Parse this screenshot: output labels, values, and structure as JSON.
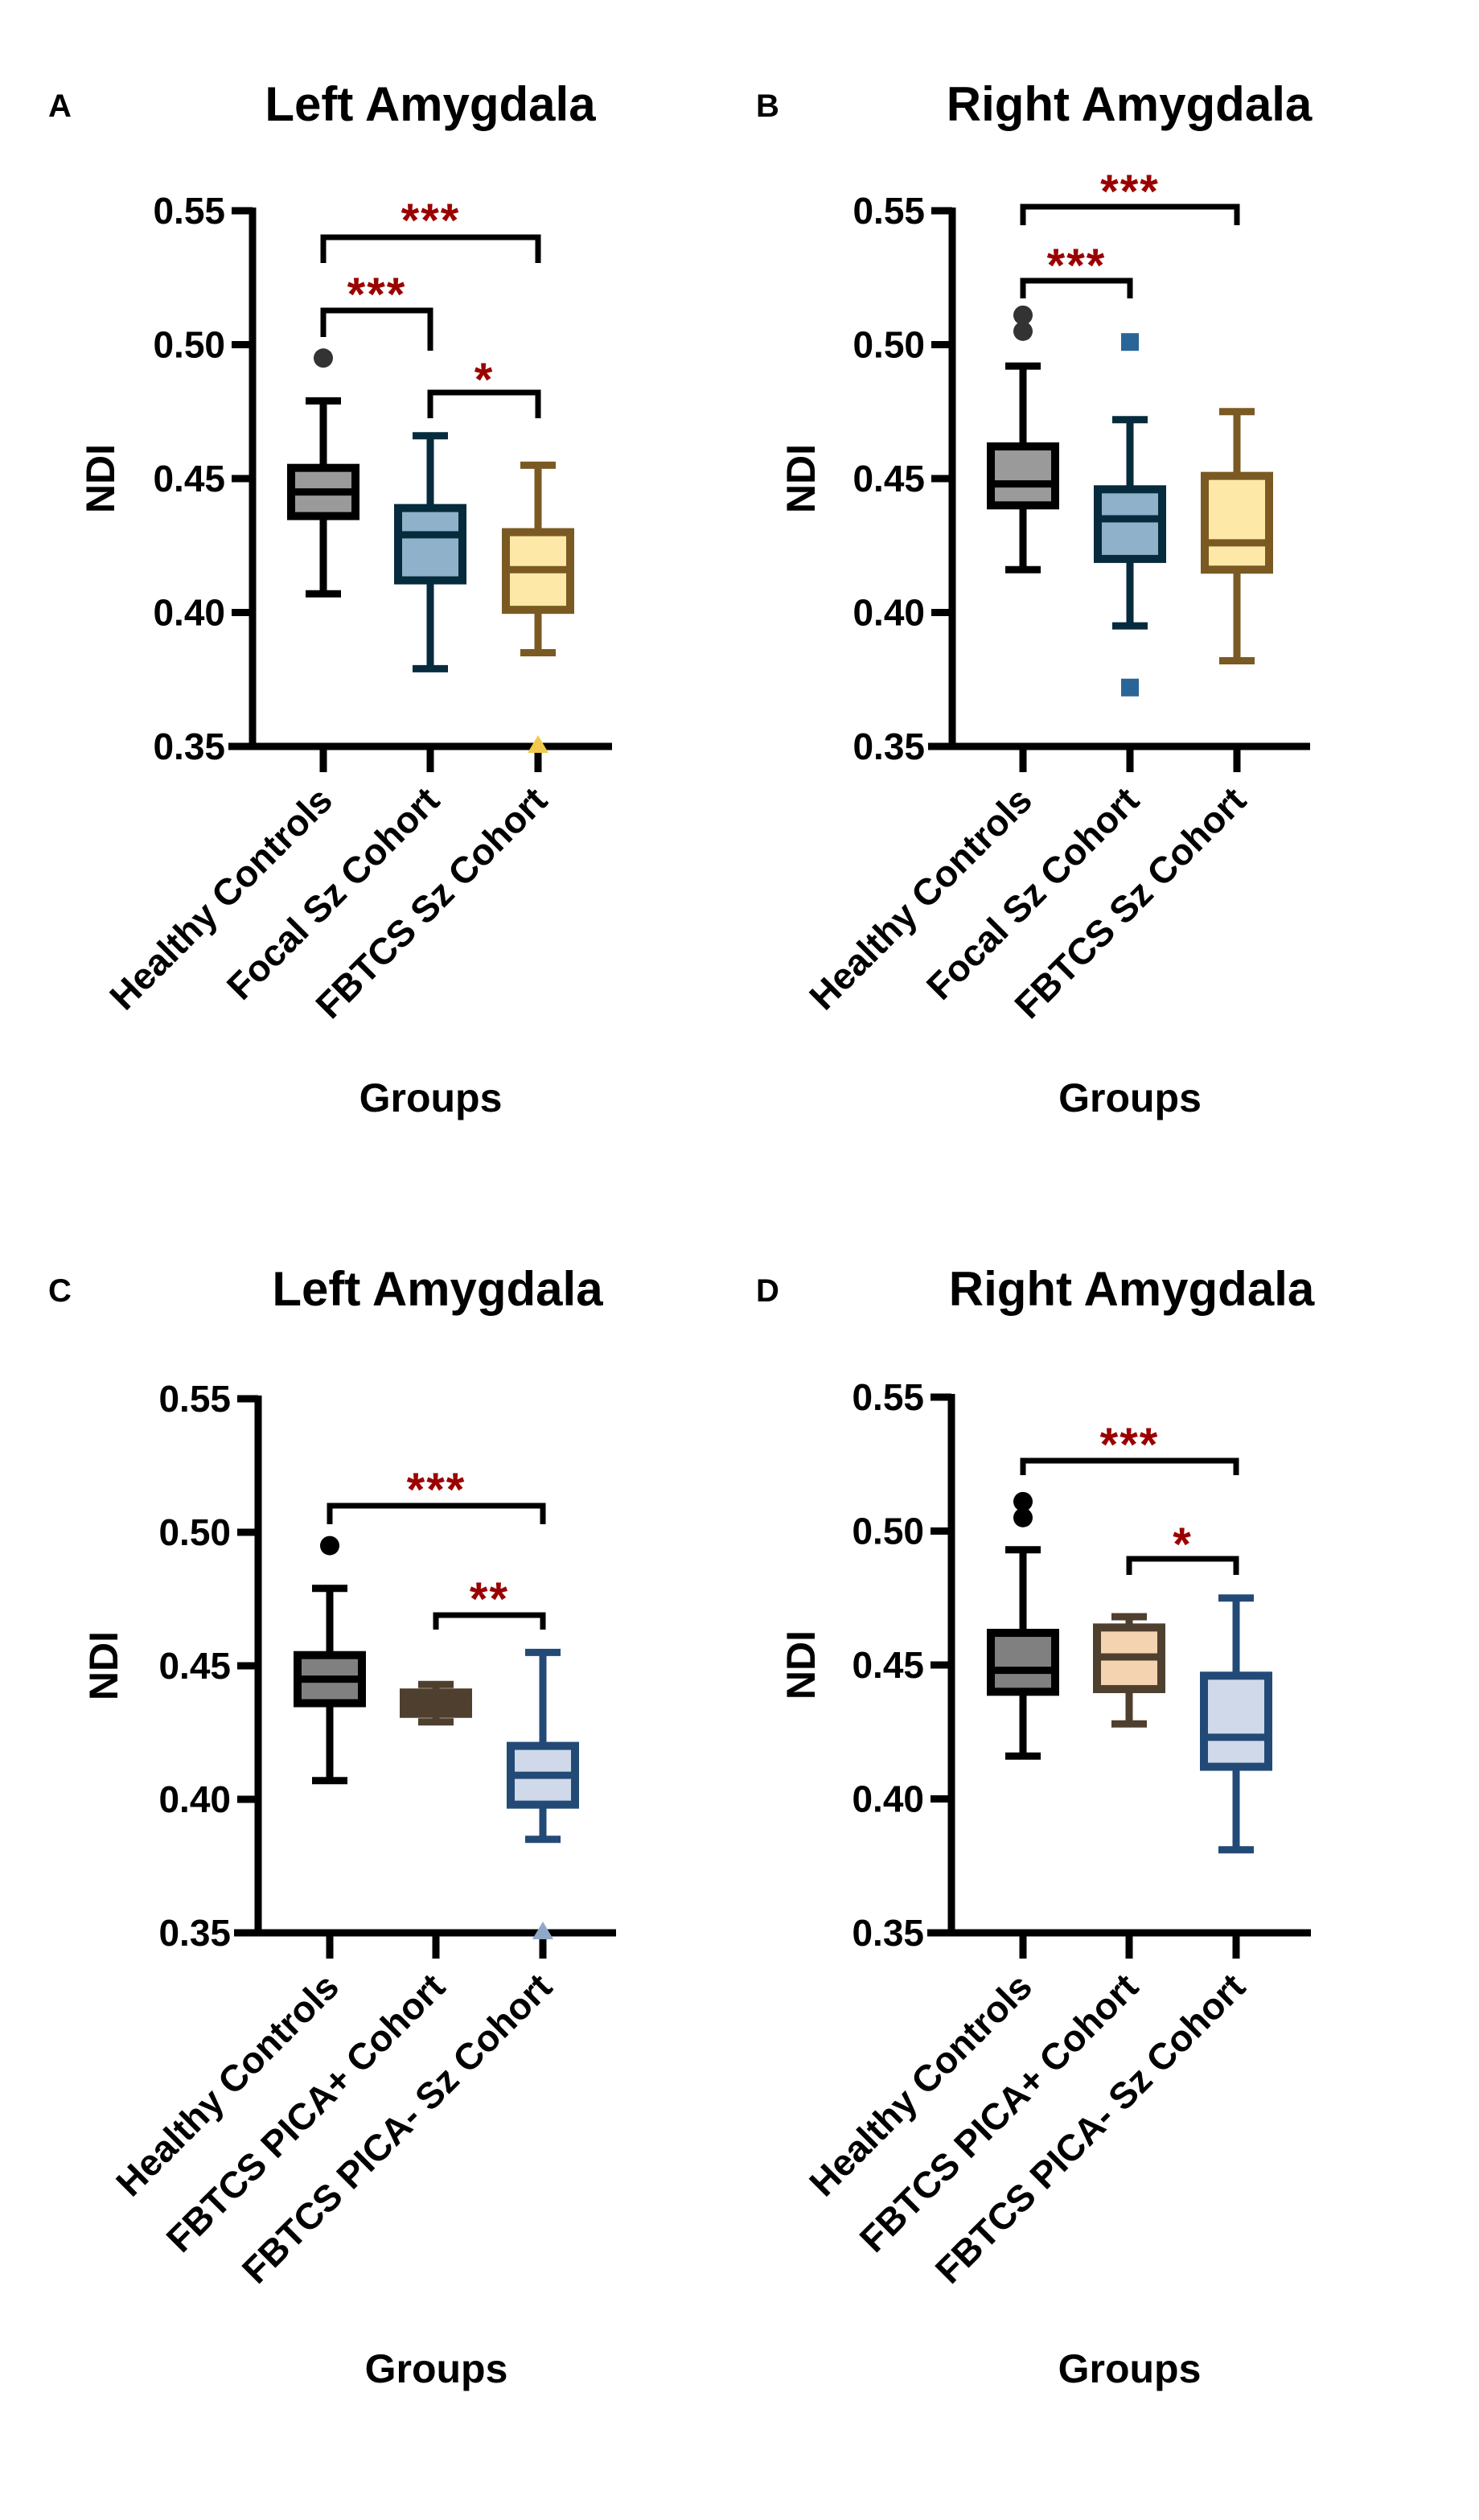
{
  "figure": {
    "panels": [
      "A",
      "B",
      "C",
      "D"
    ]
  },
  "chart_data": [
    {
      "id": "A",
      "panel_letter": "A",
      "type": "box",
      "title": "Left Amygdala",
      "xlabel": "Groups",
      "ylabel": "NDI",
      "ylim": [
        0.35,
        0.55
      ],
      "yticks": [
        "0.35",
        "0.40",
        "0.45",
        "0.50",
        "0.55"
      ],
      "ytick_values": [
        0.35,
        0.4,
        0.45,
        0.5,
        0.55
      ],
      "grid": false,
      "categories": [
        "Healthy Controls",
        "Focal Sz Cohort",
        "FBTCS Sz Cohort"
      ],
      "series": [
        {
          "name": "Healthy Controls",
          "whisker_low": 0.407,
          "q1": 0.436,
          "median": 0.445,
          "q3": 0.454,
          "whisker_high": 0.479,
          "outliers": [
            0.495
          ],
          "outlier_marker": "circle",
          "stroke": "#000000",
          "fill": "#9a9a9a",
          "outlier_color": "#333333"
        },
        {
          "name": "Focal Sz Cohort",
          "whisker_low": 0.379,
          "q1": 0.412,
          "median": 0.429,
          "q3": 0.439,
          "whisker_high": 0.466,
          "outliers": [],
          "outlier_marker": "square",
          "stroke": "#062b3d",
          "fill": "#8fb2ca",
          "outlier_color": "#2a6598"
        },
        {
          "name": "FBTCS Sz Cohort",
          "whisker_low": 0.385,
          "q1": 0.401,
          "median": 0.416,
          "q3": 0.43,
          "whisker_high": 0.455,
          "outliers": [
            0.35
          ],
          "outlier_marker": "triangle",
          "stroke": "#7a5a22",
          "fill": "#fde8a8",
          "outlier_color": "#f2c94c"
        }
      ],
      "significance": [
        {
          "from": 0,
          "to": 2,
          "label": "***"
        },
        {
          "from": 0,
          "to": 1,
          "label": "***"
        },
        {
          "from": 1,
          "to": 2,
          "label": "*"
        }
      ]
    },
    {
      "id": "B",
      "panel_letter": "B",
      "type": "box",
      "title": "Right Amygdala",
      "xlabel": "Groups",
      "ylabel": "NDI",
      "ylim": [
        0.35,
        0.55
      ],
      "yticks": [
        "0.35",
        "0.40",
        "0.45",
        "0.50",
        "0.55"
      ],
      "ytick_values": [
        0.35,
        0.4,
        0.45,
        0.5,
        0.55
      ],
      "grid": false,
      "categories": [
        "Healthy Controls",
        "Focal Sz Cohort",
        "FBTCS Sz Cohort"
      ],
      "series": [
        {
          "name": "Healthy Controls",
          "whisker_low": 0.416,
          "q1": 0.44,
          "median": 0.448,
          "q3": 0.462,
          "whisker_high": 0.492,
          "outliers": [
            0.511,
            0.505
          ],
          "outlier_marker": "circle",
          "stroke": "#000000",
          "fill": "#9a9a9a",
          "outlier_color": "#333333"
        },
        {
          "name": "Focal Sz Cohort",
          "whisker_low": 0.395,
          "q1": 0.42,
          "median": 0.435,
          "q3": 0.446,
          "whisker_high": 0.472,
          "outliers": [
            0.501,
            0.372
          ],
          "outlier_marker": "square",
          "stroke": "#062b3d",
          "fill": "#8fb2ca",
          "outlier_color": "#2a6598"
        },
        {
          "name": "FBTCS Sz Cohort",
          "whisker_low": 0.382,
          "q1": 0.416,
          "median": 0.426,
          "q3": 0.451,
          "whisker_high": 0.475,
          "outliers": [],
          "outlier_marker": "triangle",
          "stroke": "#7a5a22",
          "fill": "#fde8a8",
          "outlier_color": "#f2c94c"
        }
      ],
      "significance": [
        {
          "from": 0,
          "to": 2,
          "label": "***"
        },
        {
          "from": 0,
          "to": 1,
          "label": "***"
        }
      ]
    },
    {
      "id": "C",
      "panel_letter": "C",
      "type": "box",
      "title": "Left Amygdala",
      "xlabel": "Groups",
      "ylabel": "NDI",
      "ylim": [
        0.35,
        0.55
      ],
      "yticks": [
        "0.35",
        "0.40",
        "0.45",
        "0.50",
        "0.55"
      ],
      "ytick_values": [
        0.35,
        0.4,
        0.45,
        0.5,
        0.55
      ],
      "grid": false,
      "categories": [
        "Healthy Controls",
        "FBTCS PICA+ Cohort",
        "FBTCS PICA- Sz Cohort"
      ],
      "series": [
        {
          "name": "Healthy Controls",
          "whisker_low": 0.407,
          "q1": 0.436,
          "median": 0.445,
          "q3": 0.454,
          "whisker_high": 0.479,
          "outliers": [
            0.495
          ],
          "outlier_marker": "circle",
          "stroke": "#000000",
          "fill": "#808080",
          "outlier_color": "#000000"
        },
        {
          "name": "FBTCS PICA+ Cohort",
          "whisker_low": 0.429,
          "q1": 0.432,
          "median": 0.437,
          "q3": 0.44,
          "whisker_high": 0.443,
          "outliers": [],
          "outlier_marker": "square",
          "stroke": "#4f3f2e",
          "fill": "#4f3f2e",
          "outlier_color": "#4f3f2e"
        },
        {
          "name": "FBTCS PICA- Sz Cohort",
          "whisker_low": 0.385,
          "q1": 0.398,
          "median": 0.409,
          "q3": 0.42,
          "whisker_high": 0.455,
          "outliers": [
            0.35
          ],
          "outlier_marker": "triangle",
          "stroke": "#234a77",
          "fill": "#cfd9ea",
          "outlier_color": "#8fa8c8"
        }
      ],
      "significance": [
        {
          "from": 0,
          "to": 2,
          "label": "***"
        },
        {
          "from": 1,
          "to": 2,
          "label": "**"
        }
      ]
    },
    {
      "id": "D",
      "panel_letter": "D",
      "type": "box",
      "title": "Right Amygdala",
      "xlabel": "Groups",
      "ylabel": "NDI",
      "ylim": [
        0.35,
        0.55
      ],
      "yticks": [
        "0.35",
        "0.40",
        "0.45",
        "0.50",
        "0.55"
      ],
      "ytick_values": [
        0.35,
        0.4,
        0.45,
        0.5,
        0.55
      ],
      "grid": false,
      "categories": [
        "Healthy Controls",
        "FBTCS PICA+ Cohort",
        "FBTCS PICA- Sz Cohort"
      ],
      "series": [
        {
          "name": "Healthy Controls",
          "whisker_low": 0.416,
          "q1": 0.44,
          "median": 0.448,
          "q3": 0.462,
          "whisker_high": 0.493,
          "outliers": [
            0.511,
            0.505
          ],
          "outlier_marker": "circle",
          "stroke": "#000000",
          "fill": "#808080",
          "outlier_color": "#000000"
        },
        {
          "name": "FBTCS PICA+ Cohort",
          "whisker_low": 0.428,
          "q1": 0.441,
          "median": 0.453,
          "q3": 0.464,
          "whisker_high": 0.468,
          "outliers": [],
          "outlier_marker": "square",
          "stroke": "#4f3f2e",
          "fill": "#f4d3b0",
          "outlier_color": "#4f3f2e"
        },
        {
          "name": "FBTCS PICA- Sz Cohort",
          "whisker_low": 0.381,
          "q1": 0.412,
          "median": 0.423,
          "q3": 0.446,
          "whisker_high": 0.475,
          "outliers": [],
          "outlier_marker": "triangle",
          "stroke": "#234a77",
          "fill": "#cfd9ea",
          "outlier_color": "#8fa8c8"
        }
      ],
      "significance": [
        {
          "from": 0,
          "to": 2,
          "label": "***"
        },
        {
          "from": 1,
          "to": 2,
          "label": "*"
        }
      ]
    }
  ]
}
